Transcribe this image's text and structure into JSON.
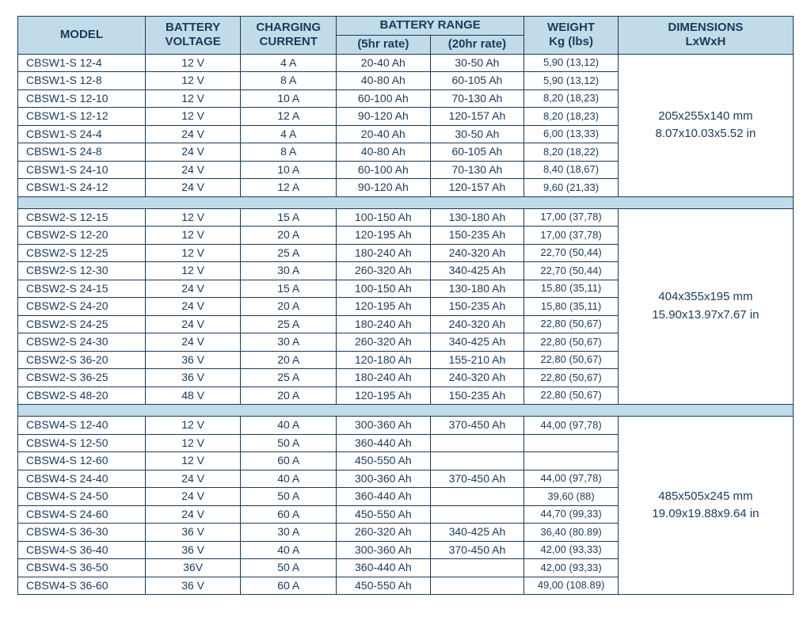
{
  "colors": {
    "header_bg": "#c1dbe8",
    "border": "#1a3a5c",
    "text": "#1a3a5c",
    "cell_bg": "#ffffff"
  },
  "headers": {
    "model": "MODEL",
    "voltage_l1": "BATTERY",
    "voltage_l2": "VOLTAGE",
    "current_l1": "CHARGING",
    "current_l2": "CURRENT",
    "range": "BATTERY RANGE",
    "rate5": "(5hr rate)",
    "rate20": "(20hr rate)",
    "weight_l1": "WEIGHT",
    "weight_l2": "Kg (lbs)",
    "dims_l1": "DIMENSIONS",
    "dims_l2": "LxWxH"
  },
  "groups": [
    {
      "dimensions_mm": "205x255x140 mm",
      "dimensions_in": "8.07x10.03x5.52 in",
      "rows": [
        {
          "model": "CBSW1-S 12-4",
          "voltage": "12 V",
          "current": "4 A",
          "r5": "20-40 Ah",
          "r20": "30-50 Ah",
          "weight": "5,90 (13,12)"
        },
        {
          "model": "CBSW1-S 12-8",
          "voltage": "12 V",
          "current": "8 A",
          "r5": "40-80 Ah",
          "r20": "60-105 Ah",
          "weight": "5,90 (13,12)"
        },
        {
          "model": "CBSW1-S 12-10",
          "voltage": "12 V",
          "current": "10 A",
          "r5": "60-100 Ah",
          "r20": "70-130 Ah",
          "weight": "8,20 (18,23)"
        },
        {
          "model": "CBSW1-S 12-12",
          "voltage": "12 V",
          "current": "12 A",
          "r5": "90-120 Ah",
          "r20": "120-157 Ah",
          "weight": "8,20 (18,23)"
        },
        {
          "model": "CBSW1-S 24-4",
          "voltage": "24 V",
          "current": "4 A",
          "r5": "20-40 Ah",
          "r20": "30-50 Ah",
          "weight": "6,00 (13,33)"
        },
        {
          "model": "CBSW1-S 24-8",
          "voltage": "24 V",
          "current": "8 A",
          "r5": "40-80 Ah",
          "r20": "60-105 Ah",
          "weight": "8,20 (18,22)"
        },
        {
          "model": "CBSW1-S 24-10",
          "voltage": "24 V",
          "current": "10 A",
          "r5": "60-100 Ah",
          "r20": "70-130 Ah",
          "weight": "8,40 (18,67)"
        },
        {
          "model": "CBSW1-S 24-12",
          "voltage": "24 V",
          "current": "12 A",
          "r5": "90-120 Ah",
          "r20": "120-157 Ah",
          "weight": "9,60 (21,33)"
        }
      ]
    },
    {
      "dimensions_mm": "404x355x195 mm",
      "dimensions_in": "15.90x13.97x7.67 in",
      "rows": [
        {
          "model": "CBSW2-S 12-15",
          "voltage": "12 V",
          "current": "15 A",
          "r5": "100-150 Ah",
          "r20": "130-180 Ah",
          "weight": "17,00 (37,78)"
        },
        {
          "model": "CBSW2-S 12-20",
          "voltage": "12 V",
          "current": "20 A",
          "r5": "120-195 Ah",
          "r20": "150-235 Ah",
          "weight": "17,00 (37,78)"
        },
        {
          "model": "CBSW2-S 12-25",
          "voltage": "12 V",
          "current": "25 A",
          "r5": "180-240 Ah",
          "r20": "240-320 Ah",
          "weight": "22,70 (50,44)"
        },
        {
          "model": "CBSW2-S 12-30",
          "voltage": "12 V",
          "current": "30 A",
          "r5": "260-320 Ah",
          "r20": "340-425 Ah",
          "weight": "22,70 (50,44)"
        },
        {
          "model": "CBSW2-S 24-15",
          "voltage": "24 V",
          "current": "15 A",
          "r5": "100-150 Ah",
          "r20": "130-180 Ah",
          "weight": "15,80 (35,11)"
        },
        {
          "model": "CBSW2-S 24-20",
          "voltage": "24 V",
          "current": "20 A",
          "r5": "120-195 Ah",
          "r20": "150-235 Ah",
          "weight": "15,80 (35,11)"
        },
        {
          "model": "CBSW2-S 24-25",
          "voltage": "24 V",
          "current": "25 A",
          "r5": "180-240 Ah",
          "r20": "240-320 Ah",
          "weight": "22,80 (50,67)"
        },
        {
          "model": "CBSW2-S 24-30",
          "voltage": "24 V",
          "current": "30 A",
          "r5": "260-320 Ah",
          "r20": "340-425 Ah",
          "weight": "22,80 (50,67)"
        },
        {
          "model": "CBSW2-S 36-20",
          "voltage": "36 V",
          "current": "20 A",
          "r5": "120-180 Ah",
          "r20": "155-210 Ah",
          "weight": "22,80 (50,67)"
        },
        {
          "model": "CBSW2-S 36-25",
          "voltage": "36 V",
          "current": "25 A",
          "r5": "180-240 Ah",
          "r20": "240-320 Ah",
          "weight": "22,80 (50,67)"
        },
        {
          "model": "CBSW2-S 48-20",
          "voltage": "48 V",
          "current": "20 A",
          "r5": "120-195 Ah",
          "r20": "150-235 Ah",
          "weight": "22,80 (50,67)"
        }
      ]
    },
    {
      "dimensions_mm": "485x505x245 mm",
      "dimensions_in": "19.09x19.88x9.64 in",
      "rows": [
        {
          "model": "CBSW4-S 12-40",
          "voltage": "12 V",
          "current": "40 A",
          "r5": "300-360 Ah",
          "r20": "370-450 Ah",
          "weight": "44,00 (97,78)"
        },
        {
          "model": "CBSW4-S 12-50",
          "voltage": "12 V",
          "current": "50 A",
          "r5": "360-440 Ah",
          "r20": "",
          "weight": ""
        },
        {
          "model": "CBSW4-S 12-60",
          "voltage": "12 V",
          "current": "60 A",
          "r5": "450-550 Ah",
          "r20": "",
          "weight": ""
        },
        {
          "model": "CBSW4-S 24-40",
          "voltage": "24 V",
          "current": "40 A",
          "r5": "300-360 Ah",
          "r20": "370-450 Ah",
          "weight": "44,00 (97,78)"
        },
        {
          "model": "CBSW4-S 24-50",
          "voltage": "24 V",
          "current": "50 A",
          "r5": "360-440 Ah",
          "r20": "",
          "weight": "39,60 (88)"
        },
        {
          "model": "CBSW4-S 24-60",
          "voltage": "24 V",
          "current": "60 A",
          "r5": "450-550 Ah",
          "r20": "",
          "weight": "44,70 (99,33)"
        },
        {
          "model": "CBSW4-S 36-30",
          "voltage": "36 V",
          "current": "30 A",
          "r5": "260-320 Ah",
          "r20": "340-425 Ah",
          "weight": "36,40 (80.89)"
        },
        {
          "model": "CBSW4-S 36-40",
          "voltage": "36 V",
          "current": "40 A",
          "r5": "300-360 Ah",
          "r20": "370-450 Ah",
          "weight": "42,00 (93,33)"
        },
        {
          "model": "CBSW4-S 36-50",
          "voltage": "36V",
          "current": "50 A",
          "r5": "360-440 Ah",
          "r20": "",
          "weight": "42,00 (93,33)"
        },
        {
          "model": "CBSW4-S 36-60",
          "voltage": "36 V",
          "current": "60 A",
          "r5": "450-550 Ah",
          "r20": "",
          "weight": "49,00 (108.89)"
        }
      ]
    }
  ]
}
